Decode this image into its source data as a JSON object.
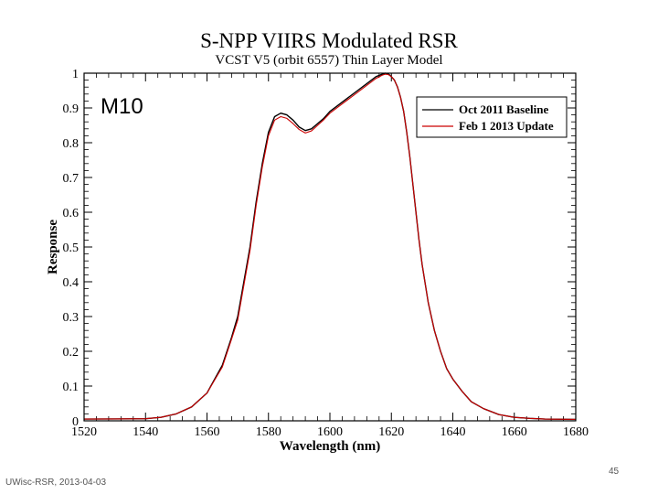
{
  "chart_data": {
    "type": "line",
    "title": "S-NPP VIIRS Modulated RSR",
    "subtitle": "VCST V5 (orbit 6557) Thin Layer Model",
    "panel_label": "M10",
    "xlabel": "Wavelength (nm)",
    "ylabel": "Response",
    "xlim": [
      1520,
      1680
    ],
    "ylim": [
      0,
      1
    ],
    "xticks": [
      1520,
      1540,
      1560,
      1580,
      1600,
      1620,
      1640,
      1660,
      1680
    ],
    "yticks": [
      0,
      0.1,
      0.2,
      0.3,
      0.4,
      0.5,
      0.6,
      0.7,
      0.8,
      0.9,
      1
    ],
    "legend_position": "top-right",
    "series": [
      {
        "name": "Oct 2011 Baseline",
        "color": "#000000",
        "x": [
          1520,
          1540,
          1545,
          1550,
          1555,
          1560,
          1565,
          1568,
          1570,
          1572,
          1574,
          1576,
          1578,
          1580,
          1582,
          1584,
          1586,
          1588,
          1590,
          1592,
          1594,
          1596,
          1598,
          1600,
          1603,
          1606,
          1609,
          1612,
          1615,
          1617,
          1618,
          1619,
          1620,
          1621,
          1622,
          1623,
          1624,
          1625,
          1626,
          1627,
          1628,
          1629,
          1630,
          1632,
          1634,
          1636,
          1638,
          1640,
          1643,
          1646,
          1650,
          1655,
          1660,
          1665,
          1670,
          1680
        ],
        "y": [
          0.005,
          0.006,
          0.01,
          0.02,
          0.04,
          0.08,
          0.16,
          0.24,
          0.3,
          0.4,
          0.5,
          0.63,
          0.74,
          0.83,
          0.875,
          0.885,
          0.88,
          0.865,
          0.845,
          0.835,
          0.84,
          0.855,
          0.87,
          0.89,
          0.91,
          0.93,
          0.95,
          0.97,
          0.99,
          0.997,
          1.0,
          0.998,
          0.99,
          0.98,
          0.96,
          0.93,
          0.89,
          0.83,
          0.76,
          0.68,
          0.6,
          0.52,
          0.45,
          0.34,
          0.26,
          0.2,
          0.15,
          0.12,
          0.085,
          0.055,
          0.035,
          0.018,
          0.01,
          0.007,
          0.005,
          0.004
        ]
      },
      {
        "name": "Feb 1 2013 Update",
        "color": "#cc0000",
        "x": [
          1520,
          1540,
          1545,
          1550,
          1555,
          1560,
          1565,
          1568,
          1570,
          1572,
          1574,
          1576,
          1578,
          1580,
          1582,
          1584,
          1586,
          1588,
          1590,
          1592,
          1594,
          1596,
          1598,
          1600,
          1603,
          1606,
          1609,
          1612,
          1615,
          1617,
          1618,
          1619,
          1620,
          1621,
          1622,
          1623,
          1624,
          1625,
          1626,
          1627,
          1628,
          1629,
          1630,
          1632,
          1634,
          1636,
          1638,
          1640,
          1643,
          1646,
          1650,
          1655,
          1660,
          1665,
          1670,
          1680
        ],
        "y": [
          0.005,
          0.006,
          0.01,
          0.02,
          0.04,
          0.08,
          0.155,
          0.235,
          0.29,
          0.39,
          0.49,
          0.62,
          0.73,
          0.82,
          0.865,
          0.875,
          0.87,
          0.855,
          0.838,
          0.828,
          0.834,
          0.85,
          0.866,
          0.885,
          0.905,
          0.925,
          0.945,
          0.965,
          0.985,
          0.994,
          0.997,
          0.996,
          0.99,
          0.98,
          0.96,
          0.93,
          0.89,
          0.83,
          0.76,
          0.68,
          0.6,
          0.52,
          0.45,
          0.34,
          0.26,
          0.2,
          0.15,
          0.12,
          0.085,
          0.055,
          0.035,
          0.018,
          0.01,
          0.007,
          0.005,
          0.004
        ]
      }
    ]
  },
  "footer": {
    "source_label": "UWisc-RSR, 2013-04-03",
    "page_number": "45"
  }
}
